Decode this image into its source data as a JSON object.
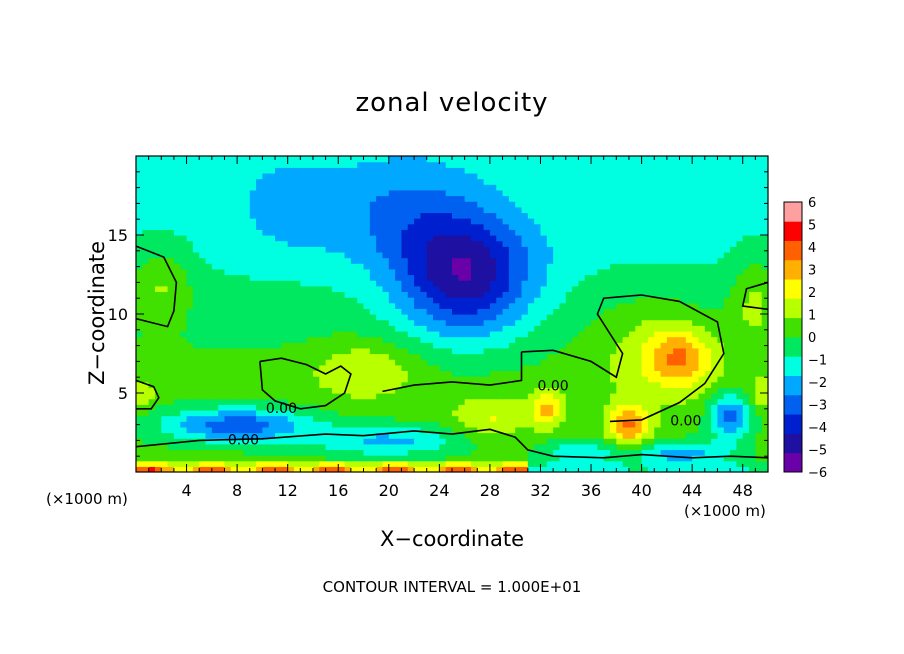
{
  "chart_data": {
    "type": "heatmap",
    "title": "zonal velocity",
    "xlabel": "X−coordinate",
    "ylabel": "Z−coordinate",
    "x_units": "(×1000 m)",
    "x_units_right": "(×1000 m)",
    "footer": "CONTOUR INTERVAL = 1.000E+01",
    "xlim": [
      0,
      50
    ],
    "ylim": [
      0,
      20
    ],
    "x_ticks": [
      4,
      8,
      12,
      16,
      20,
      24,
      28,
      32,
      36,
      40,
      44,
      48
    ],
    "y_ticks": [
      5,
      10,
      15
    ],
    "colorbar": {
      "range": [
        -6,
        6
      ],
      "ticks": [
        6,
        5,
        4,
        3,
        2,
        1,
        0,
        -1,
        -2,
        -3,
        -4,
        -5,
        -6
      ],
      "tick_labels": [
        "6",
        "5",
        "4",
        "3",
        "2",
        "1",
        "0",
        "−1",
        "−2",
        "−3",
        "−4",
        "−5",
        "−6"
      ],
      "colors": [
        "#6a00a8",
        "#1e10a0",
        "#0020d0",
        "#0060f0",
        "#00a8ff",
        "#00ffe0",
        "#00e860",
        "#40e000",
        "#b8ff00",
        "#ffff00",
        "#ffb000",
        "#ff6000",
        "#ff0000",
        "#ffa0a0"
      ]
    },
    "contour_labels": [
      "0.00",
      "0.00",
      "0.00",
      "0.00"
    ],
    "features": [
      {
        "x": 26,
        "z": 12.0,
        "value": -5.5
      },
      {
        "x": 20,
        "z": 16.0,
        "value": -2.0
      },
      {
        "x": 10,
        "z": 17.0,
        "value": -1.0
      },
      {
        "x": 2,
        "z": 12.0,
        "value": 0.5
      },
      {
        "x": 43,
        "z": 7.5,
        "value": 3.5
      },
      {
        "x": 39,
        "z": 3.0,
        "value": 4.0
      },
      {
        "x": 32,
        "z": 4.0,
        "value": 3.0
      },
      {
        "x": 6,
        "z": 3.5,
        "value": -3.5
      },
      {
        "x": 20,
        "z": 0.5,
        "value": 5.0
      },
      {
        "x": 47,
        "z": 3.5,
        "value": -4.0
      }
    ]
  }
}
